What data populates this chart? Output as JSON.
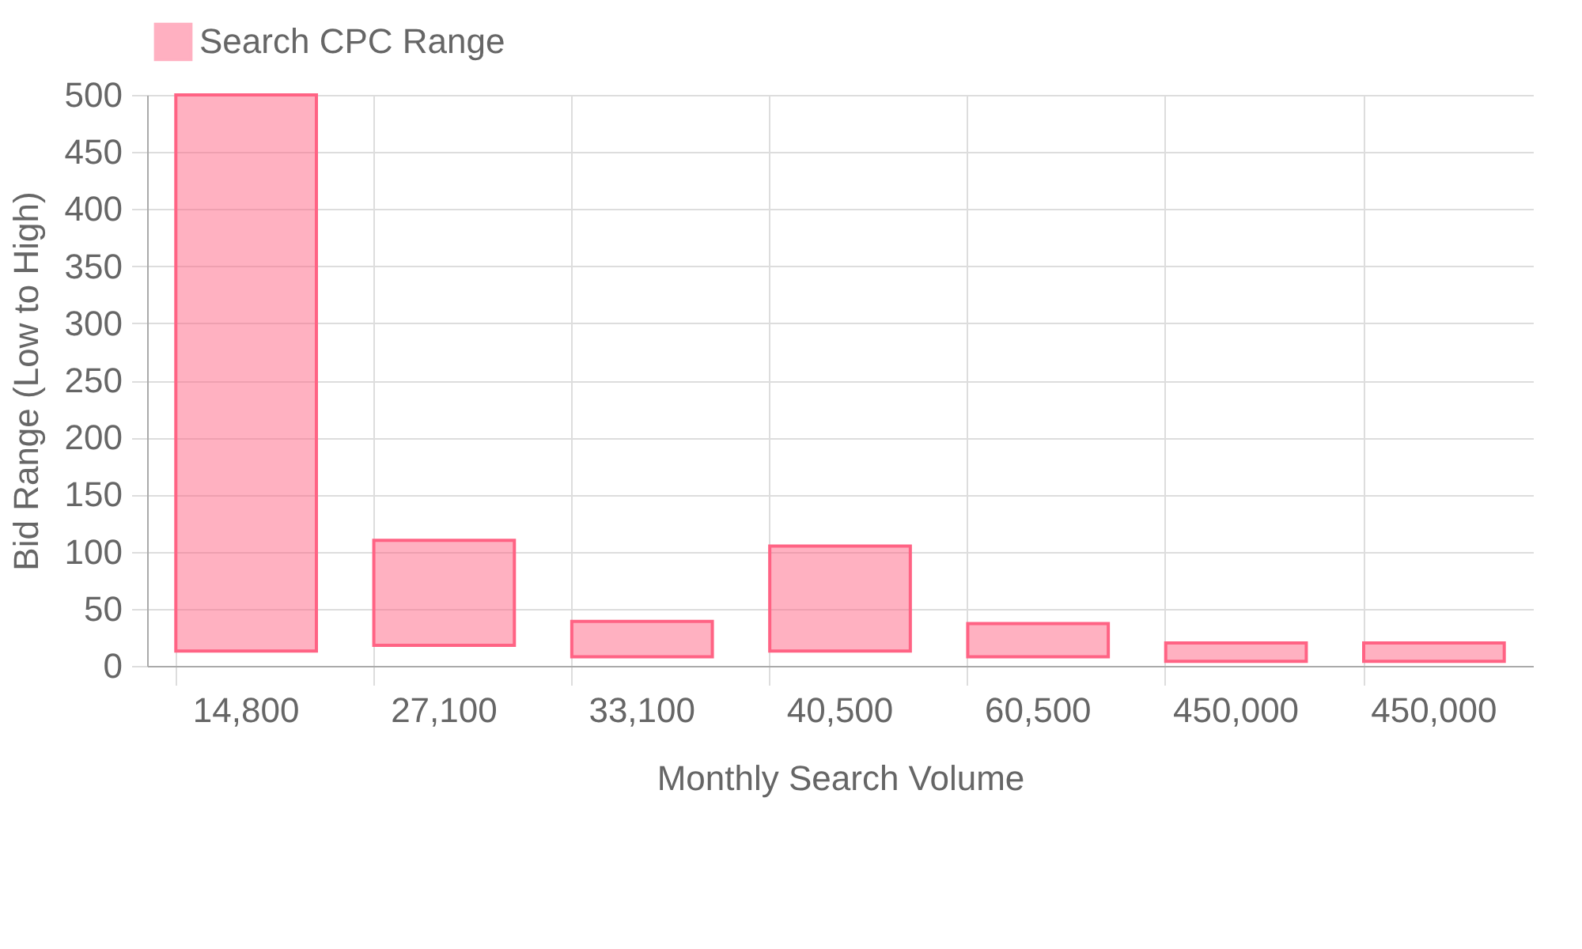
{
  "chart_data": {
    "type": "bar",
    "xlabel": "Monthly Search Volume",
    "ylabel": "Bid Range (Low to High)",
    "categories": [
      "14,800",
      "27,100",
      "33,100",
      "40,500",
      "60,500",
      "450,000",
      "450,000"
    ],
    "series": [
      {
        "name": "Search CPC Range",
        "color": "#ff6384",
        "values": [
          487,
          92,
          31,
          92,
          29,
          16,
          16
        ],
        "base": [
          13,
          18,
          8,
          13,
          8,
          4,
          4
        ]
      }
    ],
    "ylim": [
      0,
      500
    ],
    "yticks": [
      0,
      50,
      100,
      150,
      200,
      250,
      300,
      350,
      400,
      450,
      500
    ],
    "grid": true,
    "legend": "top"
  }
}
